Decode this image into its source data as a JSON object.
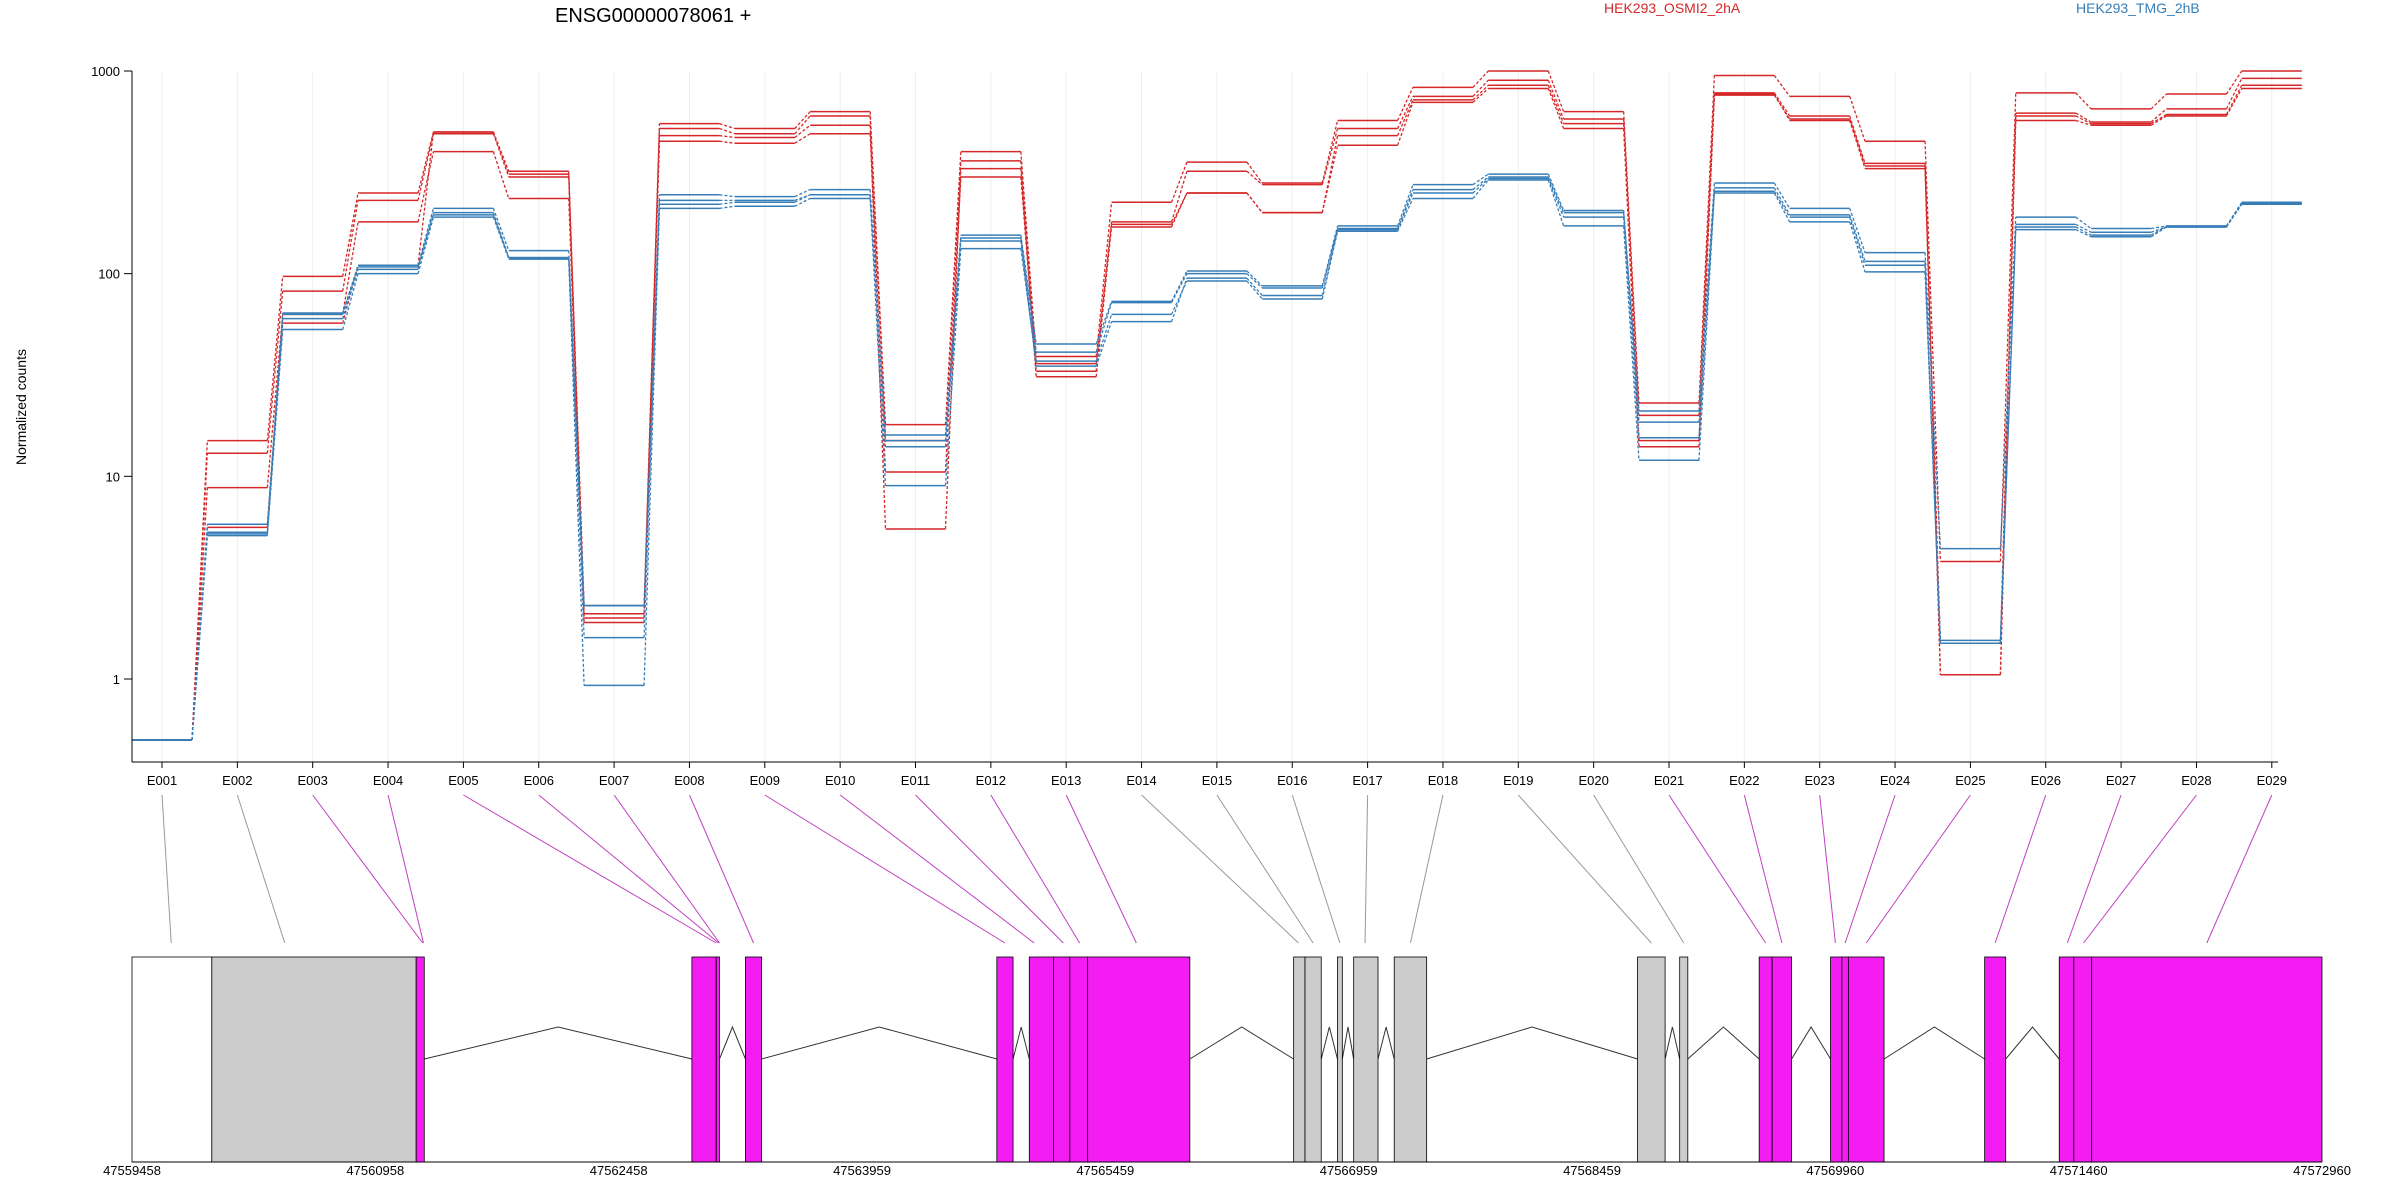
{
  "chart_data": {
    "type": "line",
    "title": "ENSG00000078061 +",
    "xlabel": "",
    "ylabel": "Normalized counts",
    "y_scale": "log",
    "ylim": [
      0.5,
      1000
    ],
    "y_ticks": [
      "1",
      "10",
      "100",
      "1000"
    ],
    "y_tick_values": [
      1,
      10,
      100,
      1000
    ],
    "grid": "vertical gridlines at each exon",
    "legend": "top",
    "categories": [
      "E001",
      "E002",
      "E003",
      "E004",
      "E005",
      "E006",
      "E007",
      "E008",
      "E009",
      "E010",
      "E011",
      "E012",
      "E013",
      "E014",
      "E015",
      "E016",
      "E017",
      "E018",
      "E019",
      "E020",
      "E021",
      "E022",
      "E023",
      "E024",
      "E025",
      "E026",
      "E027",
      "E028",
      "E029"
    ],
    "groups": [
      {
        "name": "HEK293_OSMI2_2hA",
        "color": "#d62728"
      },
      {
        "name": "HEK293_TMG_2hB",
        "color": "#377eb8"
      }
    ],
    "series": [
      {
        "group": 0,
        "values": [
          0.5,
          15,
          97,
          250,
          500,
          320,
          2.3,
          550,
          520,
          630,
          18,
          400,
          39,
          225,
          355,
          280,
          570,
          830,
          1000,
          630,
          23,
          950,
          750,
          450,
          3.8,
          780,
          650,
          770,
          1000
        ]
      },
      {
        "group": 0,
        "values": [
          0.5,
          13,
          82,
          230,
          490,
          300,
          2.1,
          520,
          490,
          600,
          15,
          360,
          36,
          180,
          320,
          275,
          520,
          750,
          900,
          580,
          20,
          780,
          600,
          350,
          1.05,
          620,
          560,
          650,
          920
        ]
      },
      {
        "group": 0,
        "values": [
          0.5,
          8.8,
          63,
          180,
          400,
          235,
          2.0,
          450,
          440,
          490,
          10.5,
          300,
          33,
          170,
          250,
          200,
          430,
          700,
          820,
          520,
          15,
          760,
          580,
          340,
          1.5,
          570,
          540,
          600,
          820
        ]
      },
      {
        "group": 0,
        "values": [
          0.5,
          5.6,
          57,
          110,
          500,
          310,
          1.9,
          480,
          470,
          540,
          5.5,
          330,
          31,
          175,
          250,
          200,
          480,
          720,
          850,
          550,
          14,
          770,
          570,
          330,
          1.05,
          600,
          550,
          610,
          850
        ]
      },
      {
        "group": 1,
        "values": [
          0.5,
          5.2,
          64,
          110,
          210,
          130,
          2.3,
          245,
          240,
          260,
          16,
          155,
          45,
          73,
          103,
          87,
          172,
          275,
          310,
          205,
          21,
          280,
          210,
          127,
          4.4,
          190,
          167,
          172,
          225
        ]
      },
      {
        "group": 1,
        "values": [
          0.5,
          5.8,
          63,
          108,
          200,
          120,
          1.6,
          230,
          230,
          245,
          15,
          150,
          41,
          72,
          100,
          85,
          167,
          260,
          300,
          200,
          18.5,
          265,
          195,
          115,
          1.5,
          175,
          160,
          170,
          222
        ]
      },
      {
        "group": 1,
        "values": [
          0.5,
          5.1,
          53,
          100,
          190,
          118,
          0.93,
          210,
          215,
          235,
          9,
          133,
          37,
          63,
          92,
          75,
          162,
          235,
          290,
          172,
          12,
          250,
          180,
          102,
          1.55,
          165,
          152,
          170,
          220
        ]
      },
      {
        "group": 1,
        "values": [
          0.5,
          5.3,
          60,
          105,
          195,
          120,
          2.3,
          220,
          225,
          245,
          14,
          145,
          35,
          58,
          95,
          78,
          165,
          250,
          295,
          190,
          15.5,
          255,
          190,
          110,
          1.5,
          170,
          155,
          171,
          221
        ]
      }
    ],
    "gene_model": {
      "coordinate_labels": [
        "47559458",
        "47560958",
        "47562458",
        "47563959",
        "47565459",
        "47566959",
        "47568459",
        "47569960",
        "47571460",
        "47572960"
      ],
      "coord_start": 47559458,
      "coord_end": 47572960,
      "tracks": [
        {
          "name": "exon-block",
          "color": "#f31df3"
        },
        {
          "name": "constant-region",
          "color": "#cccccc"
        },
        {
          "name": "flanking-region",
          "color": "#ffffff"
        }
      ],
      "blocks": [
        {
          "start": 47559458,
          "end": 47559950,
          "kind": 2
        },
        {
          "start": 47559950,
          "end": 47561210,
          "kind": 1
        },
        {
          "start": 47561210,
          "end": 47561260,
          "kind": 0
        },
        {
          "start": 47562910,
          "end": 47563060,
          "kind": 0
        },
        {
          "start": 47563060,
          "end": 47563080,
          "kind": 0
        },
        {
          "start": 47563240,
          "end": 47563340,
          "kind": 0
        },
        {
          "start": 47564790,
          "end": 47564890,
          "kind": 0
        },
        {
          "start": 47564990,
          "end": 47565140,
          "kind": 0
        },
        {
          "start": 47565140,
          "end": 47565240,
          "kind": 0
        },
        {
          "start": 47565240,
          "end": 47565350,
          "kind": 0
        },
        {
          "start": 47565350,
          "end": 47565980,
          "kind": 0
        },
        {
          "start": 47566620,
          "end": 47566690,
          "kind": 1
        },
        {
          "start": 47566690,
          "end": 47566790,
          "kind": 1
        },
        {
          "start": 47566890,
          "end": 47566920,
          "kind": 1
        },
        {
          "start": 47566990,
          "end": 47567140,
          "kind": 1
        },
        {
          "start": 47567240,
          "end": 47567440,
          "kind": 1
        },
        {
          "start": 47568740,
          "end": 47568910,
          "kind": 1
        },
        {
          "start": 47569000,
          "end": 47569050,
          "kind": 1
        },
        {
          "start": 47569490,
          "end": 47569570,
          "kind": 0
        },
        {
          "start": 47569570,
          "end": 47569690,
          "kind": 0
        },
        {
          "start": 47569930,
          "end": 47570000,
          "kind": 0
        },
        {
          "start": 47570000,
          "end": 47570040,
          "kind": 0
        },
        {
          "start": 47570040,
          "end": 47570260,
          "kind": 0
        },
        {
          "start": 47570880,
          "end": 47571010,
          "kind": 0
        },
        {
          "start": 47571340,
          "end": 47571430,
          "kind": 0
        },
        {
          "start": 47571430,
          "end": 47571540,
          "kind": 0
        },
        {
          "start": 47571540,
          "end": 47572960,
          "kind": 0
        }
      ],
      "exon_links": [
        47559700,
        47560400,
        47561250,
        47561255,
        47563060,
        47563075,
        47563080,
        47563290,
        47564840,
        47565020,
        47565200,
        47565300,
        47565650,
        47566650,
        47566740,
        47566905,
        47567060,
        47567340,
        47568825,
        47569025,
        47569530,
        47569630,
        47569960,
        47570020,
        47570150,
        47570945,
        47571390,
        47571490,
        47572250
      ]
    }
  }
}
